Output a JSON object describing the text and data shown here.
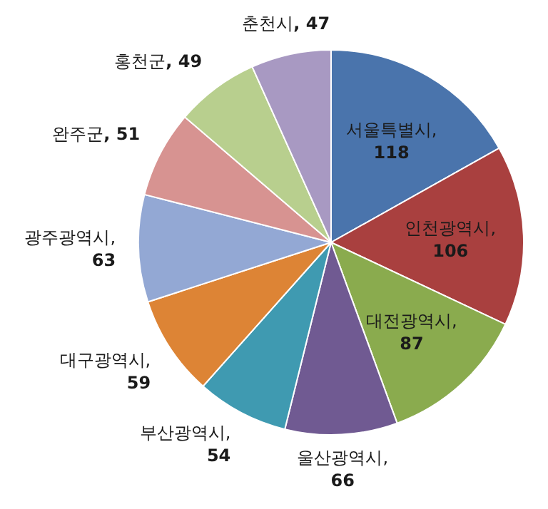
{
  "chart_data": {
    "type": "pie",
    "categories": [
      "서울특별시",
      "인천광역시",
      "대전광역시",
      "울산광역시",
      "부산광역시",
      "대구광역시",
      "광주광역시",
      "완주군",
      "홍천군",
      "춘천시"
    ],
    "values": [
      118,
      106,
      87,
      66,
      54,
      59,
      63,
      51,
      49,
      47
    ],
    "colors": [
      "#4a74ac",
      "#a9403f",
      "#8aab4e",
      "#705a92",
      "#3f9ab1",
      "#dd8435",
      "#93a8d4",
      "#d79391",
      "#b8cf8e",
      "#a899c2"
    ],
    "value_labels": [
      ",\n118",
      ",\n106",
      ",\n87",
      ",\n66",
      ",\n54",
      ",\n59",
      ",\n63",
      ", 51",
      ", 49",
      ", 47"
    ]
  }
}
